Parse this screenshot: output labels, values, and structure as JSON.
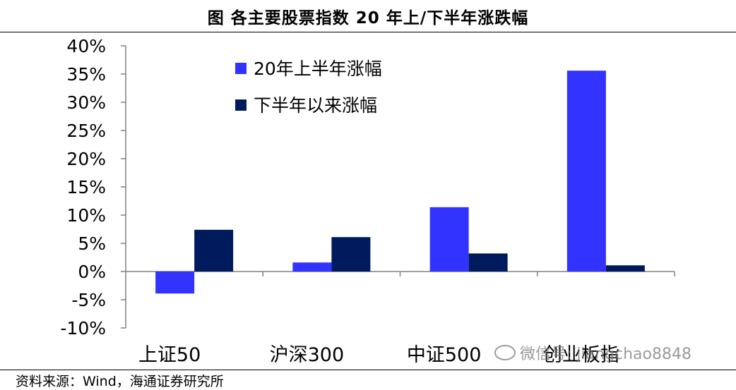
{
  "title": "图    各主要股票指数 20 年上/下半年涨跌幅",
  "source": "资料来源：Wind，海通证券研究所",
  "watermark": "微信号: jiangchao8848",
  "chart_data": {
    "type": "bar",
    "categories": [
      "上证50",
      "沪深300",
      "中证500",
      "创业板指"
    ],
    "series": [
      {
        "name": "20年上半年涨幅",
        "color": "#3333FF",
        "values": [
          -3.9,
          1.6,
          11.4,
          35.6
        ]
      },
      {
        "name": "下半年以来涨幅",
        "color": "#001A5E",
        "values": [
          7.4,
          6.1,
          3.2,
          1.1
        ]
      }
    ],
    "yticks": [
      "40%",
      "35%",
      "30%",
      "25%",
      "20%",
      "15%",
      "10%",
      "5%",
      "0%",
      "-5%",
      "-10%"
    ],
    "ylim": [
      -10,
      40
    ],
    "legend_position": "top-center",
    "grid": false,
    "xlabel": "",
    "ylabel": ""
  }
}
